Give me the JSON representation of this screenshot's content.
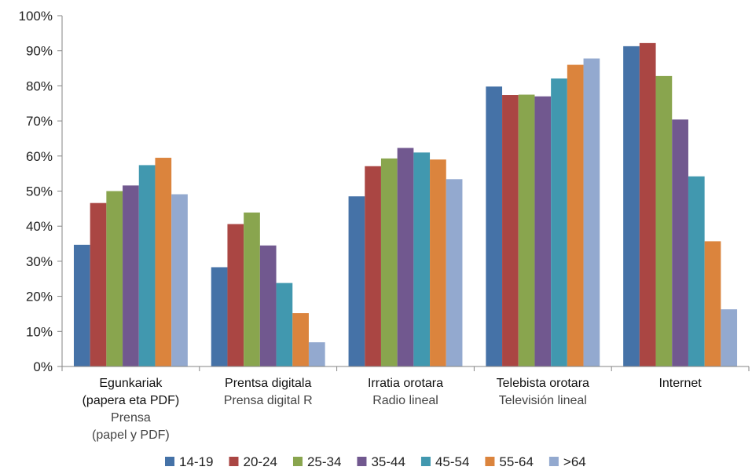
{
  "chart_data": {
    "type": "bar",
    "ylim": [
      0,
      100
    ],
    "y_ticks": [
      "0%",
      "10%",
      "20%",
      "30%",
      "40%",
      "50%",
      "60%",
      "70%",
      "80%",
      "90%",
      "100%"
    ],
    "grid": false,
    "legend_position": "bottom",
    "categories": [
      {
        "lines": [
          "Egunkariak",
          "(papera eta PDF)"
        ],
        "sub": [
          "Prensa",
          "(papel y PDF)"
        ]
      },
      {
        "lines": [
          "Prentsa digitala"
        ],
        "sub": [
          "Prensa digital R"
        ]
      },
      {
        "lines": [
          "Irratia orotara"
        ],
        "sub": [
          "Radio lineal"
        ]
      },
      {
        "lines": [
          "Telebista orotara"
        ],
        "sub": [
          "Televisión lineal"
        ]
      },
      {
        "lines": [
          "Internet"
        ],
        "sub": []
      }
    ],
    "series": [
      {
        "name": "14-19",
        "color": "#4572A7",
        "values": [
          34.7,
          28.3,
          48.5,
          79.8,
          91.3
        ]
      },
      {
        "name": "20-24",
        "color": "#AA4643",
        "values": [
          46.6,
          40.6,
          57.1,
          77.4,
          92.2
        ]
      },
      {
        "name": "25-34",
        "color": "#89A54E",
        "values": [
          50.0,
          43.9,
          59.3,
          77.5,
          82.8
        ]
      },
      {
        "name": "35-44",
        "color": "#71588F",
        "values": [
          51.6,
          34.5,
          62.3,
          77.0,
          70.4
        ]
      },
      {
        "name": "45-54",
        "color": "#4198AF",
        "values": [
          57.4,
          23.8,
          61.0,
          82.1,
          54.2
        ]
      },
      {
        "name": "55-64",
        "color": "#DB843D",
        "values": [
          59.5,
          15.2,
          59.0,
          86.0,
          35.7
        ]
      },
      {
        "name": ">64",
        "color": "#93A9CF",
        "values": [
          49.1,
          6.9,
          53.4,
          87.8,
          16.3
        ]
      }
    ]
  }
}
